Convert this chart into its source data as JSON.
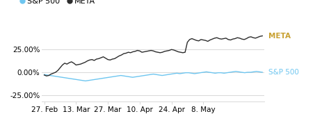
{
  "legend_labels": [
    "S&P 500",
    "META"
  ],
  "sp500_color": "#6ec6f0",
  "meta_color": "#2d2d2d",
  "annotation_meta_color": "#c8a030",
  "annotation_sp500_color": "#6ec6f0",
  "background_color": "#ffffff",
  "grid_color": "#d8d8d8",
  "ylim": [
    -32,
    48
  ],
  "yticks": [
    -25.0,
    0.0,
    25.0
  ],
  "tick_fontsize": 7.5,
  "legend_fontsize": 8,
  "annotation_fontsize": 7.5,
  "sp500_data": [
    -2.5,
    -3.0,
    -3.5,
    -4.0,
    -4.5,
    -5.0,
    -5.5,
    -6.0,
    -6.5,
    -7.0,
    -7.5,
    -8.0,
    -8.5,
    -9.0,
    -9.5,
    -9.0,
    -8.5,
    -8.0,
    -7.5,
    -7.0,
    -6.5,
    -6.0,
    -5.5,
    -5.0,
    -4.5,
    -4.0,
    -3.5,
    -4.0,
    -4.5,
    -5.0,
    -5.5,
    -5.0,
    -4.5,
    -4.0,
    -3.5,
    -3.0,
    -2.5,
    -2.0,
    -2.5,
    -3.0,
    -3.5,
    -3.0,
    -2.5,
    -2.0,
    -1.5,
    -1.0,
    -1.5,
    -1.0,
    -0.5,
    -0.5,
    -1.0,
    -1.5,
    -1.0,
    -0.5,
    0.0,
    0.5,
    0.0,
    -0.5,
    -1.0,
    -0.5,
    -0.5,
    -1.0,
    -0.5,
    0.0,
    0.5,
    1.0,
    0.5,
    0.0,
    -0.5,
    0.0,
    0.0,
    0.5,
    1.0,
    0.5,
    0.0
  ],
  "meta_data": [
    -3.0,
    -4.0,
    -3.5,
    -2.0,
    -1.0,
    0.0,
    2.0,
    5.0,
    8.0,
    10.0,
    9.0,
    10.5,
    11.5,
    10.0,
    8.0,
    8.5,
    9.0,
    10.0,
    11.0,
    12.5,
    13.5,
    14.0,
    13.0,
    14.5,
    15.0,
    16.0,
    17.0,
    15.5,
    14.0,
    13.5,
    14.5,
    15.0,
    16.5,
    18.0,
    19.0,
    20.5,
    21.0,
    22.0,
    21.5,
    22.5,
    23.0,
    24.0,
    23.5,
    22.0,
    22.5,
    23.0,
    23.5,
    24.0,
    23.5,
    22.5,
    22.0,
    21.5,
    22.0,
    23.0,
    23.5,
    24.0,
    25.0,
    24.5,
    23.5,
    22.5,
    22.0,
    21.5,
    22.0,
    33.0,
    36.0,
    37.0,
    36.0,
    35.0,
    34.5,
    36.0,
    35.5,
    35.0,
    34.0,
    35.5,
    36.5,
    37.5,
    38.0,
    37.0,
    36.5,
    37.0,
    37.5,
    36.0,
    35.5,
    36.5,
    37.0,
    38.0,
    37.5,
    36.5,
    36.0,
    37.0,
    38.5,
    39.0,
    38.0,
    37.5,
    38.5,
    39.5,
    40.0
  ],
  "xtick_labels": [
    "27. Feb",
    "13. Mar",
    "27. Mar",
    "10. Apr",
    "24. Apr",
    "8. May"
  ],
  "xtick_positions": [
    0,
    14,
    28,
    42,
    56,
    70
  ]
}
